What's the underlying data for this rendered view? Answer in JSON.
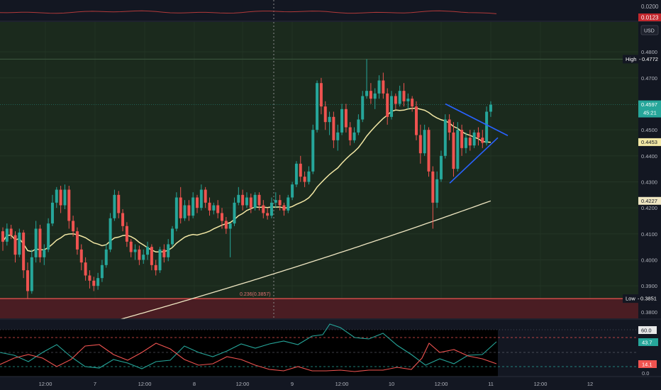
{
  "colors": {
    "background": "#131722",
    "main_bg": "#1b2a1d",
    "low_zone": "#4a1d23",
    "candle_up": "#26a69a",
    "candle_down": "#ef5350",
    "ma_fast": "#f3e8a5",
    "ma_slow": "#efe6c2",
    "triangle": "#2962ff",
    "top_line": "#b23a3a",
    "rsi_green": "#26a69a",
    "rsi_red": "#ef5350",
    "axis_text": "#b2b5be"
  },
  "top_panel": {
    "ticks": [
      "0.0200",
      "0.0123"
    ],
    "value_badge": "0.0123"
  },
  "price_axis": {
    "currency": "USD",
    "ticks": [
      "0.4800",
      "0.4700",
      "0.4500",
      "0.4400",
      "0.4300",
      "0.4200",
      "0.4100",
      "0.4000",
      "0.3900",
      "0.3800"
    ],
    "high_label": "High",
    "high_value": "0.4772",
    "low_label": "Low",
    "low_value": "0.3851",
    "last_price": "0.4597",
    "countdown": "45:21",
    "ma_fast_value": "0.4453",
    "ma_slow_value": "0.4227"
  },
  "fib_label": "0.236(0.3857)",
  "indicator_panel": {
    "levels": [
      "60.0",
      "43.7",
      "14.1",
      "0.0"
    ],
    "green_value": "43.7",
    "red_value": "14.1"
  },
  "time_axis": {
    "labels": [
      "12:00",
      "7",
      "12:00",
      "8",
      "12:00",
      "9",
      "12:00",
      "10",
      "12:00",
      "11",
      "12:00",
      "12"
    ]
  },
  "chart_data": {
    "type": "candlestick",
    "y_range": [
      0.3775,
      0.4915
    ],
    "high": 0.4772,
    "low": 0.3851,
    "ma_fast_last": 0.4453,
    "ma_slow_last": 0.4227,
    "fib_level": 0.3857,
    "candles": [
      [
        0.411,
        0.4125,
        0.4035,
        0.407
      ],
      [
        0.407,
        0.414,
        0.4055,
        0.412
      ],
      [
        0.412,
        0.4135,
        0.408,
        0.4095
      ],
      [
        0.4095,
        0.411,
        0.399,
        0.402
      ],
      [
        0.402,
        0.412,
        0.401,
        0.4105
      ],
      [
        0.4105,
        0.4115,
        0.393,
        0.396
      ],
      [
        0.396,
        0.399,
        0.3851,
        0.388
      ],
      [
        0.388,
        0.404,
        0.387,
        0.401
      ],
      [
        0.401,
        0.415,
        0.399,
        0.412
      ],
      [
        0.412,
        0.4135,
        0.399,
        0.401
      ],
      [
        0.401,
        0.406,
        0.398,
        0.404
      ],
      [
        0.404,
        0.416,
        0.403,
        0.414
      ],
      [
        0.414,
        0.425,
        0.413,
        0.422
      ],
      [
        0.422,
        0.428,
        0.42,
        0.427
      ],
      [
        0.427,
        0.4285,
        0.418,
        0.421
      ],
      [
        0.421,
        0.429,
        0.4195,
        0.427
      ],
      [
        0.427,
        0.4285,
        0.412,
        0.415
      ],
      [
        0.415,
        0.417,
        0.409,
        0.411
      ],
      [
        0.411,
        0.4125,
        0.402,
        0.404
      ],
      [
        0.404,
        0.406,
        0.396,
        0.399
      ],
      [
        0.399,
        0.401,
        0.392,
        0.394
      ],
      [
        0.394,
        0.396,
        0.389,
        0.392
      ],
      [
        0.392,
        0.3935,
        0.388,
        0.39
      ],
      [
        0.39,
        0.395,
        0.3885,
        0.393
      ],
      [
        0.393,
        0.4,
        0.3915,
        0.398
      ],
      [
        0.398,
        0.406,
        0.397,
        0.404
      ],
      [
        0.404,
        0.418,
        0.403,
        0.416
      ],
      [
        0.416,
        0.427,
        0.415,
        0.425
      ],
      [
        0.425,
        0.4265,
        0.416,
        0.418
      ],
      [
        0.418,
        0.4195,
        0.411,
        0.413
      ],
      [
        0.413,
        0.4145,
        0.405,
        0.407
      ],
      [
        0.407,
        0.408,
        0.401,
        0.403
      ],
      [
        0.403,
        0.406,
        0.4,
        0.404
      ],
      [
        0.404,
        0.4055,
        0.398,
        0.4
      ],
      [
        0.4,
        0.404,
        0.3985,
        0.402
      ],
      [
        0.402,
        0.407,
        0.4,
        0.405
      ],
      [
        0.405,
        0.406,
        0.396,
        0.398
      ],
      [
        0.398,
        0.4,
        0.394,
        0.396
      ],
      [
        0.396,
        0.405,
        0.395,
        0.404
      ],
      [
        0.404,
        0.406,
        0.399,
        0.401
      ],
      [
        0.401,
        0.408,
        0.3995,
        0.406
      ],
      [
        0.406,
        0.413,
        0.405,
        0.412
      ],
      [
        0.412,
        0.426,
        0.411,
        0.424
      ],
      [
        0.424,
        0.428,
        0.414,
        0.416
      ],
      [
        0.416,
        0.423,
        0.415,
        0.421
      ],
      [
        0.421,
        0.423,
        0.415,
        0.417
      ],
      [
        0.417,
        0.426,
        0.416,
        0.424
      ],
      [
        0.424,
        0.425,
        0.418,
        0.42
      ],
      [
        0.42,
        0.429,
        0.419,
        0.427
      ],
      [
        0.427,
        0.428,
        0.42,
        0.422
      ],
      [
        0.422,
        0.424,
        0.417,
        0.419
      ],
      [
        0.419,
        0.422,
        0.4175,
        0.421
      ],
      [
        0.421,
        0.423,
        0.416,
        0.418
      ],
      [
        0.418,
        0.42,
        0.412,
        0.415
      ],
      [
        0.415,
        0.4165,
        0.41,
        0.412
      ],
      [
        0.412,
        0.414,
        0.401,
        0.414
      ],
      [
        0.414,
        0.424,
        0.413,
        0.422
      ],
      [
        0.422,
        0.428,
        0.421,
        0.425
      ],
      [
        0.425,
        0.427,
        0.419,
        0.421
      ],
      [
        0.421,
        0.426,
        0.42,
        0.424
      ],
      [
        0.424,
        0.4255,
        0.418,
        0.42
      ],
      [
        0.42,
        0.426,
        0.419,
        0.425
      ],
      [
        0.425,
        0.426,
        0.419,
        0.421
      ],
      [
        0.421,
        0.423,
        0.416,
        0.418
      ],
      [
        0.418,
        0.42,
        0.4155,
        0.417
      ],
      [
        0.417,
        0.424,
        0.416,
        0.422
      ],
      [
        0.422,
        0.426,
        0.42,
        0.423
      ],
      [
        0.423,
        0.425,
        0.419,
        0.421
      ],
      [
        0.421,
        0.422,
        0.417,
        0.419
      ],
      [
        0.419,
        0.425,
        0.418,
        0.424
      ],
      [
        0.424,
        0.43,
        0.423,
        0.429
      ],
      [
        0.429,
        0.438,
        0.428,
        0.437
      ],
      [
        0.437,
        0.44,
        0.43,
        0.432
      ],
      [
        0.432,
        0.434,
        0.428,
        0.43
      ],
      [
        0.43,
        0.436,
        0.429,
        0.434
      ],
      [
        0.434,
        0.452,
        0.433,
        0.45
      ],
      [
        0.45,
        0.469,
        0.449,
        0.468
      ],
      [
        0.468,
        0.47,
        0.456,
        0.459
      ],
      [
        0.459,
        0.461,
        0.45,
        0.453
      ],
      [
        0.453,
        0.457,
        0.448,
        0.455
      ],
      [
        0.455,
        0.457,
        0.443,
        0.446
      ],
      [
        0.446,
        0.452,
        0.442,
        0.449
      ],
      [
        0.449,
        0.46,
        0.448,
        0.458
      ],
      [
        0.458,
        0.46,
        0.449,
        0.451
      ],
      [
        0.451,
        0.453,
        0.444,
        0.446
      ],
      [
        0.446,
        0.451,
        0.445,
        0.449
      ],
      [
        0.449,
        0.456,
        0.448,
        0.454
      ],
      [
        0.454,
        0.465,
        0.453,
        0.463
      ],
      [
        0.463,
        0.4772,
        0.462,
        0.465
      ],
      [
        0.465,
        0.468,
        0.46,
        0.462
      ],
      [
        0.462,
        0.466,
        0.458,
        0.464
      ],
      [
        0.464,
        0.471,
        0.462,
        0.469
      ],
      [
        0.469,
        0.472,
        0.462,
        0.464
      ],
      [
        0.464,
        0.466,
        0.452,
        0.455
      ],
      [
        0.455,
        0.465,
        0.454,
        0.463
      ],
      [
        0.463,
        0.464,
        0.458,
        0.46
      ],
      [
        0.46,
        0.467,
        0.459,
        0.465
      ],
      [
        0.465,
        0.468,
        0.459,
        0.461
      ],
      [
        0.461,
        0.464,
        0.458,
        0.462
      ],
      [
        0.462,
        0.463,
        0.457,
        0.459
      ],
      [
        0.459,
        0.461,
        0.446,
        0.448
      ],
      [
        0.448,
        0.452,
        0.437,
        0.441
      ],
      [
        0.441,
        0.452,
        0.44,
        0.45
      ],
      [
        0.45,
        0.451,
        0.432,
        0.434
      ],
      [
        0.434,
        0.436,
        0.412,
        0.422
      ],
      [
        0.422,
        0.434,
        0.42,
        0.431
      ],
      [
        0.431,
        0.442,
        0.43,
        0.44
      ],
      [
        0.44,
        0.456,
        0.439,
        0.454
      ],
      [
        0.454,
        0.456,
        0.446,
        0.449
      ],
      [
        0.449,
        0.453,
        0.432,
        0.435
      ],
      [
        0.435,
        0.453,
        0.434,
        0.45
      ],
      [
        0.45,
        0.452,
        0.44,
        0.443
      ],
      [
        0.443,
        0.449,
        0.441,
        0.447
      ],
      [
        0.447,
        0.45,
        0.442,
        0.444
      ],
      [
        0.444,
        0.45,
        0.443,
        0.449
      ],
      [
        0.449,
        0.451,
        0.444,
        0.447
      ],
      [
        0.447,
        0.45,
        0.443,
        0.445
      ],
      [
        0.445,
        0.459,
        0.444,
        0.457
      ],
      [
        0.457,
        0.461,
        0.455,
        0.4597
      ]
    ]
  }
}
